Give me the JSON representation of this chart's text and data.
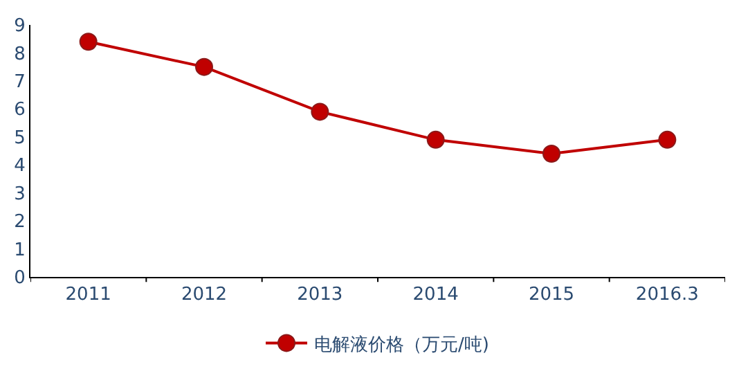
{
  "chart_data": {
    "type": "line",
    "categories": [
      "2011",
      "2012",
      "2013",
      "2014",
      "2015",
      "2016.3"
    ],
    "series": [
      {
        "name": "电解液价格（万元/吨)",
        "color": "#c00000",
        "values": [
          8.4,
          7.5,
          5.9,
          4.9,
          4.4,
          4.9
        ]
      }
    ],
    "ylim": [
      0,
      9
    ],
    "yticks": [
      0,
      1,
      2,
      3,
      4,
      5,
      6,
      7,
      8,
      9
    ],
    "marker": "circle",
    "line_style": "solid",
    "legend": "bottom"
  }
}
